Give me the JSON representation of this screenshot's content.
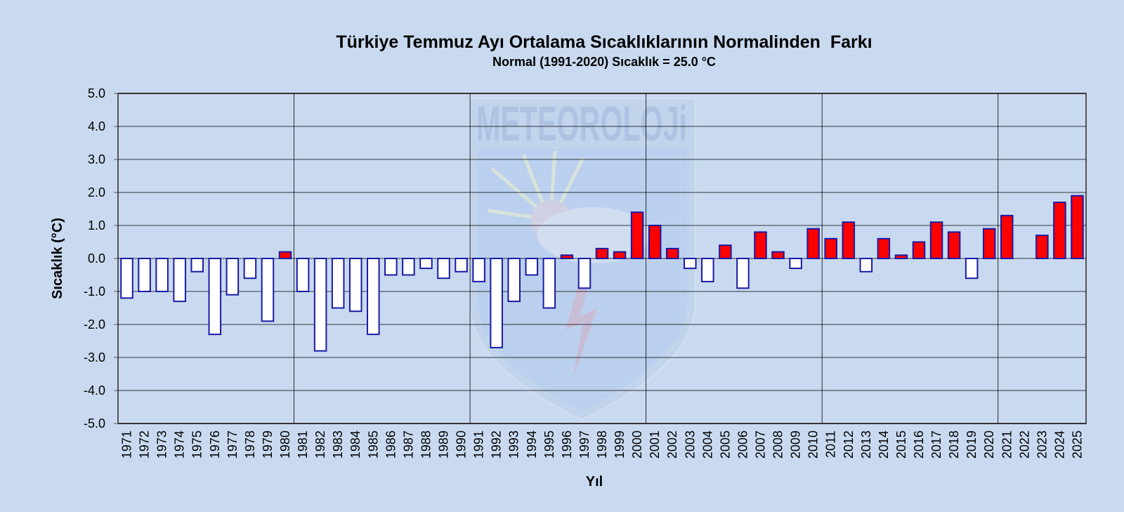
{
  "chart_data": {
    "type": "bar",
    "title": "Türkiye Temmuz Ayı Ortalama Sıcaklıklarının Normalinden  Farkı",
    "subtitle": "Normal (1991-2020) Sıcaklık = 25.0 °C",
    "xlabel": "Yıl",
    "ylabel": "Sıcaklık (°C)",
    "ylim": [
      -5.0,
      5.0
    ],
    "yticks": [
      "5.0",
      "4.0",
      "3.0",
      "2.0",
      "1.0",
      "0.0",
      "-1.0",
      "-2.0",
      "-3.0",
      "-4.0",
      "-5.0"
    ],
    "grid": true,
    "legend": "none",
    "categories": [
      "1971",
      "1972",
      "1973",
      "1974",
      "1975",
      "1976",
      "1977",
      "1978",
      "1979",
      "1980",
      "1981",
      "1982",
      "1983",
      "1984",
      "1985",
      "1986",
      "1987",
      "1988",
      "1989",
      "1990",
      "1991",
      "1992",
      "1993",
      "1994",
      "1995",
      "1996",
      "1997",
      "1998",
      "1999",
      "2000",
      "2001",
      "2002",
      "2003",
      "2004",
      "2005",
      "2006",
      "2007",
      "2008",
      "2009",
      "2010",
      "2011",
      "2012",
      "2013",
      "2014",
      "2015",
      "2016",
      "2017",
      "2018",
      "2019",
      "2020",
      "2021",
      "2022",
      "2023",
      "2024",
      "2025"
    ],
    "values": [
      -1.2,
      -1.0,
      -1.0,
      -1.3,
      -0.4,
      -2.3,
      -1.1,
      -0.6,
      -1.9,
      0.2,
      -1.0,
      -2.8,
      -1.5,
      -1.6,
      -2.3,
      -0.5,
      -0.5,
      -0.3,
      -0.6,
      -0.4,
      -0.7,
      -2.7,
      -1.3,
      -0.5,
      -1.5,
      0.1,
      -0.9,
      0.3,
      0.2,
      1.4,
      1.0,
      0.3,
      -0.3,
      -0.7,
      0.4,
      -0.9,
      0.8,
      0.2,
      -0.3,
      0.9,
      0.6,
      1.1,
      -0.4,
      0.6,
      0.1,
      0.5,
      1.1,
      0.8,
      -0.6,
      0.9,
      1.3,
      null,
      0.7,
      1.7,
      1.9
    ],
    "colors": {
      "positive": "#ff0000",
      "negative": "#ffffff",
      "bar_stroke": "#1a1aa6",
      "background": "#c9daf0",
      "grid": "#000000"
    }
  },
  "watermark": {
    "text": "METEOROLOJi"
  }
}
